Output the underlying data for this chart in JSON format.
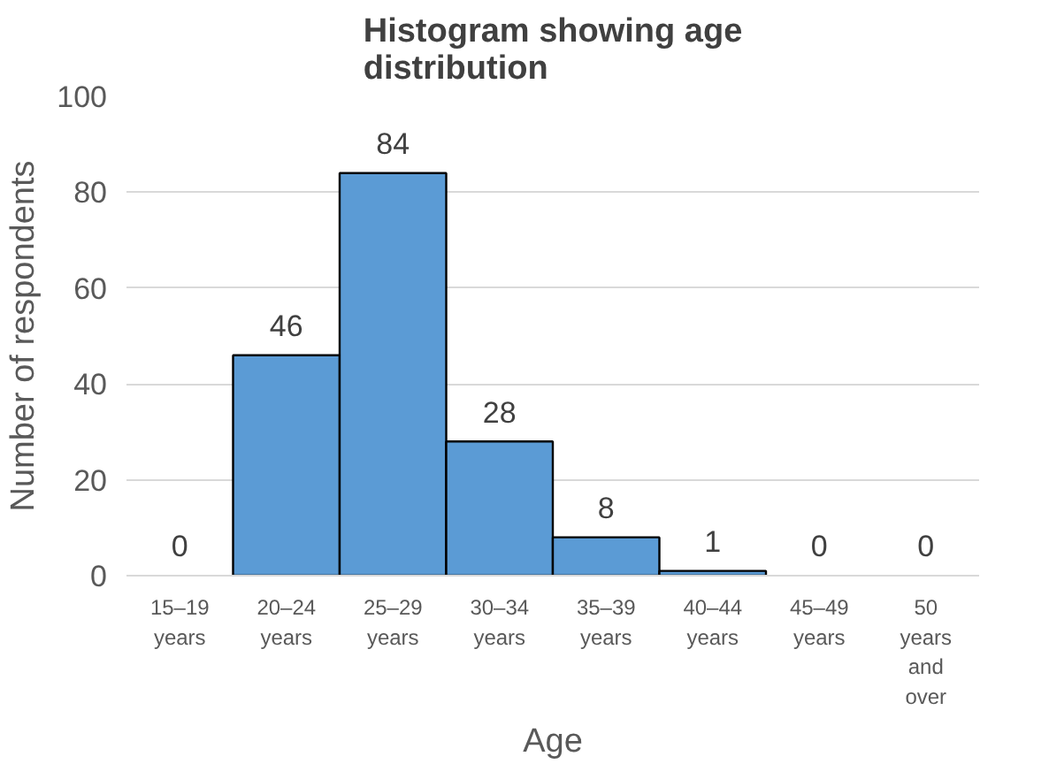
{
  "chart_data": {
    "type": "bar",
    "title": "Histogram showing age distribution",
    "xlabel": "Age",
    "ylabel": "Number of respondents",
    "categories": [
      "15–19 years",
      "20–24 years",
      "25–29 years",
      "30–34 years",
      "35–39 years",
      "40–44 years",
      "45–49 years",
      "50 years and over"
    ],
    "values": [
      0,
      46,
      84,
      28,
      8,
      1,
      0,
      0
    ],
    "color": "#5b9bd5",
    "ylim": [
      0,
      100
    ],
    "yticks": [
      0,
      20,
      40,
      60,
      80,
      100
    ],
    "grid": "y",
    "data_labels": true
  }
}
